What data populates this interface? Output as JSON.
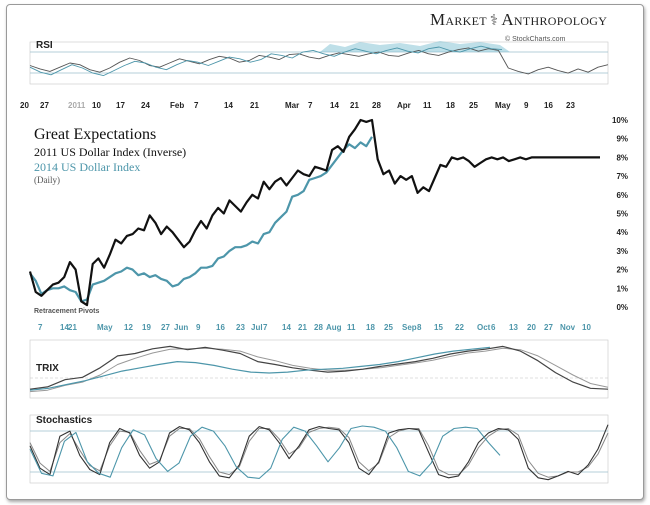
{
  "header": {
    "brand_left": "Market",
    "brand_right": "Anthropology",
    "copyright": "© StockCharts.com"
  },
  "colors": {
    "series2011": "#111111",
    "series2014": "#4d96aa",
    "grid": "#9bbfcc",
    "accent": "#88c4d6"
  },
  "chart_data": [
    {
      "type": "line",
      "panel": "rsi",
      "title": "RSI",
      "series": [
        {
          "color": "#555555",
          "values": [
            52,
            48,
            45,
            50,
            55,
            53,
            47,
            44,
            49,
            56,
            61,
            58,
            52,
            50,
            55,
            60,
            57,
            54,
            59,
            63,
            61,
            56,
            58,
            64,
            62,
            59,
            65,
            66,
            62,
            60,
            64,
            67,
            65,
            63,
            66,
            68,
            64,
            63,
            67,
            70,
            66,
            64,
            68,
            71,
            73,
            69,
            72,
            70,
            49,
            45,
            42,
            47,
            50,
            46,
            43,
            48,
            44,
            50,
            53
          ]
        },
        {
          "color": "#4d96aa",
          "values": [
            50,
            44,
            41,
            47,
            53,
            49,
            43,
            40,
            46,
            52,
            57,
            55,
            50,
            47,
            53,
            58,
            56,
            52,
            57,
            62,
            60,
            56,
            59,
            66,
            64,
            61,
            68,
            70,
            66,
            63,
            68,
            72,
            69,
            66,
            70,
            73,
            69,
            67,
            72,
            74,
            70,
            68,
            72,
            75,
            72,
            71
          ]
        }
      ]
    },
    {
      "type": "line",
      "panel": "main",
      "title": "Great Expectations",
      "annotations": [
        "Retracement Pivots"
      ],
      "x_ticks_top": [
        "20",
        "27",
        "2011",
        "10",
        "17",
        "24",
        "Feb",
        "7",
        "14",
        "21",
        "Mar",
        "7",
        "14",
        "21",
        "28",
        "Apr",
        "11",
        "18",
        "25",
        "May",
        "9",
        "16",
        "23"
      ],
      "x_ticks_bottom": [
        "7",
        "14",
        "21",
        "May",
        "12",
        "19",
        "27",
        "Jun",
        "9",
        "16",
        "23",
        "Jul",
        "7",
        "14",
        "21",
        "28",
        "Aug",
        "11",
        "18",
        "25",
        "Sep",
        "8",
        "15",
        "22",
        "Oct",
        "6",
        "13",
        "20",
        "27",
        "Nov",
        "10"
      ],
      "y_ticks": [
        "0%",
        "1%",
        "2%",
        "3%",
        "4%",
        "5%",
        "6%",
        "7%",
        "8%",
        "9%",
        "10%"
      ],
      "ylim": [
        0,
        10
      ],
      "series": [
        {
          "name": "2011 US Dollar Index (Inverse)",
          "color": "#111111",
          "x": [
            0,
            3,
            6,
            9,
            12,
            15,
            18,
            21,
            24,
            27,
            30,
            33,
            36,
            39,
            42,
            45,
            48,
            51,
            54,
            57,
            60,
            63,
            66,
            69,
            72,
            75,
            78,
            81,
            84,
            87,
            90,
            93,
            96,
            99,
            102,
            105,
            108,
            111,
            114,
            117,
            120,
            123,
            126,
            129,
            132,
            135,
            138,
            141,
            144,
            147,
            150,
            153,
            156,
            159,
            162,
            165,
            168,
            171,
            174,
            177,
            180,
            183,
            186,
            189,
            192,
            195,
            198,
            201,
            204,
            207,
            210,
            213,
            216,
            219,
            222,
            225,
            228,
            231,
            234,
            237,
            240,
            243,
            246,
            249,
            252,
            255,
            258,
            261,
            264,
            267,
            270,
            273,
            276,
            279,
            282,
            285,
            288,
            291,
            294,
            297,
            300
          ],
          "values": [
            1.9,
            0.8,
            0.6,
            0.9,
            1.2,
            1.3,
            1.6,
            2.4,
            2.0,
            0.3,
            0.1,
            2.3,
            2.6,
            2.1,
            2.8,
            3.6,
            3.4,
            3.8,
            3.9,
            4.2,
            4.1,
            4.9,
            4.5,
            3.9,
            4.3,
            4.0,
            3.6,
            3.2,
            3.5,
            4.1,
            4.6,
            4.2,
            4.9,
            5.3,
            5.0,
            5.7,
            5.4,
            5.1,
            5.6,
            6.0,
            5.8,
            6.7,
            6.3,
            6.7,
            6.9,
            6.5,
            6.9,
            7.3,
            7.1,
            7.0,
            7.5,
            7.4,
            7.3,
            8.4,
            8.6,
            8.3,
            9.1,
            9.5,
            10.0,
            9.9,
            10.0,
            7.9,
            7.1,
            7.3,
            6.6,
            7.0,
            6.8,
            7.0,
            6.1,
            6.4,
            6.2,
            6.9,
            7.6,
            7.5,
            8.0,
            7.9,
            8.0,
            7.8,
            7.5,
            7.7,
            7.9,
            8.0,
            7.9,
            8.0,
            7.8,
            7.9,
            8.0,
            7.9,
            8.0,
            8.0,
            8.0,
            8.0,
            8.0,
            8.0,
            8.0,
            8.0,
            8.0,
            8.0,
            8.0,
            8.0,
            8.0
          ]
        },
        {
          "name": "2014 US Dollar Index",
          "color": "#4d96aa",
          "x": [
            0,
            3,
            6,
            9,
            12,
            15,
            18,
            21,
            24,
            27,
            30,
            33,
            36,
            39,
            42,
            45,
            48,
            51,
            54,
            57,
            60,
            63,
            66,
            69,
            72,
            75,
            78,
            81,
            84,
            87,
            90,
            93,
            96,
            99,
            102,
            105,
            108,
            111,
            114,
            117,
            120,
            123,
            126,
            129,
            132,
            135,
            138,
            141,
            144,
            147,
            150,
            153,
            156,
            159,
            162,
            165,
            168,
            171,
            174,
            177,
            180
          ],
          "values": [
            1.8,
            1.4,
            0.7,
            0.9,
            1.0,
            1.0,
            1.1,
            0.9,
            0.8,
            0.3,
            0.4,
            1.2,
            1.3,
            1.4,
            1.6,
            1.8,
            1.9,
            2.1,
            2.0,
            1.7,
            1.8,
            1.6,
            1.7,
            1.5,
            1.4,
            1.1,
            1.2,
            1.5,
            1.6,
            1.8,
            2.1,
            2.1,
            2.2,
            2.6,
            2.7,
            3.0,
            3.2,
            3.2,
            3.3,
            3.5,
            3.4,
            3.9,
            4.0,
            4.5,
            4.8,
            5.1,
            5.9,
            6.0,
            6.2,
            6.8,
            6.9,
            7.0,
            7.2,
            7.6,
            8.0,
            8.4,
            8.7,
            8.5,
            8.8,
            8.6,
            9.1
          ]
        }
      ]
    },
    {
      "type": "line",
      "panel": "trix",
      "title": "TRIX",
      "series": [
        {
          "color": "#444444",
          "values": [
            0.1,
            0.15,
            0.3,
            0.35,
            0.55,
            0.8,
            0.85,
            0.95,
            1.0,
            0.93,
            0.98,
            0.92,
            0.85,
            0.68,
            0.62,
            0.55,
            0.5,
            0.46,
            0.48,
            0.52,
            0.58,
            0.63,
            0.68,
            0.75,
            0.84,
            0.9,
            0.94,
            1.0,
            0.9,
            0.7,
            0.45,
            0.25,
            0.12,
            0.1
          ]
        },
        {
          "color": "#999999",
          "values": [
            0.05,
            0.08,
            0.18,
            0.25,
            0.4,
            0.62,
            0.75,
            0.86,
            0.94,
            0.95,
            0.96,
            0.94,
            0.9,
            0.78,
            0.7,
            0.6,
            0.54,
            0.5,
            0.5,
            0.52,
            0.55,
            0.6,
            0.65,
            0.71,
            0.79,
            0.86,
            0.9,
            0.96,
            0.93,
            0.8,
            0.6,
            0.4,
            0.22,
            0.14
          ]
        },
        {
          "color": "#4d96aa",
          "values": [
            0.08,
            0.12,
            0.2,
            0.28,
            0.38,
            0.48,
            0.55,
            0.62,
            0.68,
            0.66,
            0.6,
            0.52,
            0.46,
            0.44,
            0.46,
            0.5,
            0.52,
            0.54,
            0.58,
            0.62,
            0.68,
            0.76,
            0.84,
            0.9,
            0.94,
            0.98
          ]
        }
      ]
    },
    {
      "type": "line",
      "panel": "stochastics",
      "title": "Stochastics",
      "series": [
        {
          "color": "#333333",
          "values": [
            55,
            20,
            10,
            70,
            78,
            40,
            18,
            10,
            60,
            82,
            75,
            40,
            20,
            30,
            75,
            85,
            80,
            60,
            30,
            8,
            5,
            25,
            70,
            85,
            80,
            60,
            35,
            55,
            80,
            85,
            82,
            80,
            60,
            20,
            10,
            30,
            75,
            80,
            82,
            80,
            45,
            10,
            5,
            8,
            30,
            60,
            75,
            82,
            80,
            65,
            20,
            5,
            2,
            8,
            15,
            10,
            25,
            50,
            88
          ]
        },
        {
          "color": "#4d96aa",
          "values": [
            50,
            12,
            8,
            62,
            76,
            30,
            12,
            6,
            52,
            80,
            72,
            35,
            15,
            28,
            70,
            84,
            78,
            55,
            22,
            6,
            4,
            20,
            65,
            84,
            78,
            55,
            30,
            52,
            82,
            86,
            84,
            78,
            52,
            15,
            8,
            28,
            70,
            82,
            84,
            82,
            60,
            40
          ]
        },
        {
          "color": "#888888",
          "values": [
            60,
            28,
            15,
            60,
            74,
            48,
            24,
            16,
            55,
            78,
            76,
            48,
            26,
            32,
            70,
            82,
            82,
            66,
            38,
            14,
            10,
            22,
            62,
            82,
            82,
            66,
            42,
            52,
            76,
            82,
            84,
            82,
            68,
            30,
            16,
            28,
            68,
            78,
            82,
            82,
            55,
            18,
            10,
            10,
            25,
            52,
            70,
            80,
            82,
            72,
            32,
            12,
            6,
            8,
            14,
            14,
            22,
            42,
            75
          ]
        }
      ]
    }
  ],
  "legend": {
    "title": "Great Expectations",
    "line1": "2011 US Dollar Index (Inverse)",
    "line2": "2014 US Dollar Index",
    "line3": "(Daily)"
  }
}
